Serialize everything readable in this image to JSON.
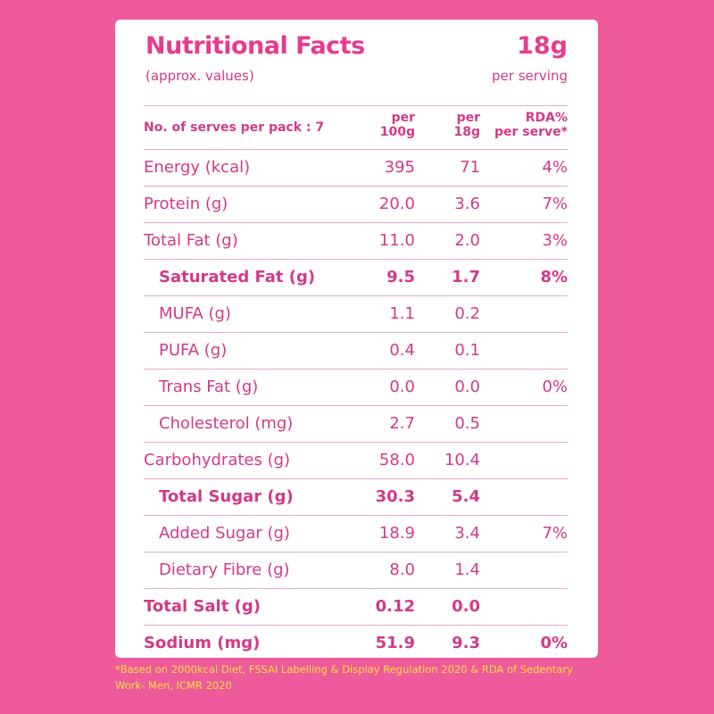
{
  "header": {
    "title": "Nutritional Facts",
    "subtitle": "(approx. values)",
    "serving_size": "18g",
    "serving_label": "per serving"
  },
  "columns": {
    "serves": "No. of serves per pack : 7",
    "per100_line1": "per",
    "per100_line2": "100g",
    "per18_line1": "per",
    "per18_line2": "18g",
    "rda_line1": "RDA%",
    "rda_line2": "per serve*"
  },
  "rows": [
    {
      "label": "Energy (kcal)",
      "per100": "395",
      "per18": "71",
      "rda": "4%"
    },
    {
      "label": "Protein (g)",
      "per100": "20.0",
      "per18": "3.6",
      "rda": "7%"
    },
    {
      "label": "Total Fat (g)",
      "per100": "11.0",
      "per18": "2.0",
      "rda": "3%"
    },
    {
      "label": "Saturated Fat (g)",
      "per100": "9.5",
      "per18": "1.7",
      "rda": "8%"
    },
    {
      "label": "MUFA (g)",
      "per100": "1.1",
      "per18": "0.2",
      "rda": ""
    },
    {
      "label": "PUFA (g)",
      "per100": "0.4",
      "per18": "0.1",
      "rda": ""
    },
    {
      "label": "Trans Fat (g)",
      "per100": "0.0",
      "per18": "0.0",
      "rda": "0%"
    },
    {
      "label": "Cholesterol (mg)",
      "per100": "2.7",
      "per18": "0.5",
      "rda": ""
    },
    {
      "label": "Carbohydrates (g)",
      "per100": "58.0",
      "per18": "10.4",
      "rda": ""
    },
    {
      "label": "Total Sugar (g)",
      "per100": "30.3",
      "per18": "5.4",
      "rda": ""
    },
    {
      "label": "Added Sugar (g)",
      "per100": "18.9",
      "per18": "3.4",
      "rda": "7%"
    },
    {
      "label": "Dietary Fibre (g)",
      "per100": "8.0",
      "per18": "1.4",
      "rda": ""
    },
    {
      "label": "Total Salt (g)",
      "per100": "0.12",
      "per18": "0.0",
      "rda": ""
    },
    {
      "label": "Sodium (mg)",
      "per100": "51.9",
      "per18": "9.3",
      "rda": "0%"
    }
  ],
  "footnote": "*Based on 2000kcal Diet, FSSAI Labelling & Display Regulation 2020 & RDA of Sedentary Work- Men, ICMR 2020",
  "colors": {
    "background": "#ee5a9c",
    "card": "#ffffff",
    "text": "#d23a86",
    "title": "#e63b8f",
    "divider": "#e5aacb",
    "footnote": "#fde03a"
  }
}
